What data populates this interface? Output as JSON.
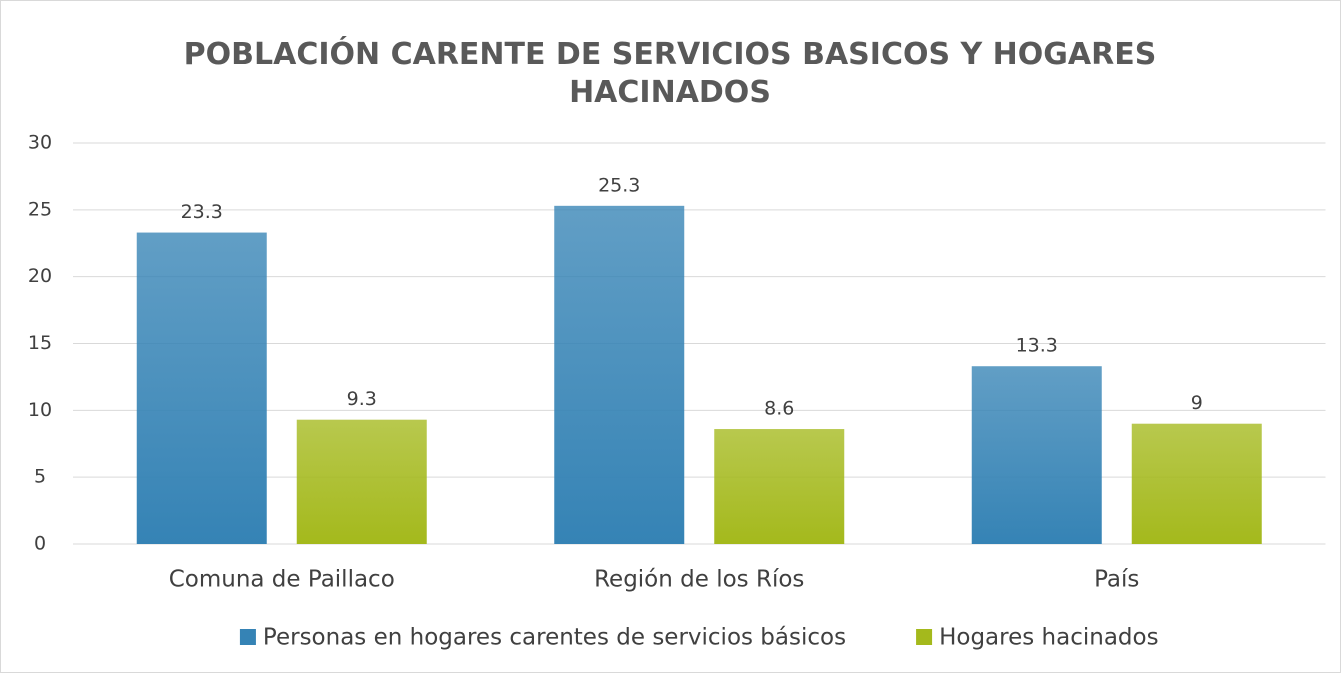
{
  "chart_data": {
    "type": "bar",
    "title": "POBLACIÓN CARENTE DE SERVICIOS BASICOS Y HOGARES HACINADOS",
    "categories": [
      "Comuna de Paillaco",
      "Región de los Ríos",
      "País"
    ],
    "series": [
      {
        "name": "Personas en hogares carentes de servicios básicos",
        "color": "#3583b5",
        "values": [
          23.3,
          25.3,
          13.3
        ]
      },
      {
        "name": "Hogares hacinados",
        "color": "#a4b91c",
        "values": [
          9.3,
          8.6,
          9
        ]
      }
    ],
    "ylim": [
      0,
      30
    ],
    "yticks": [
      0,
      5,
      10,
      15,
      20,
      25,
      30
    ],
    "grid": true,
    "legend": "bottom"
  }
}
